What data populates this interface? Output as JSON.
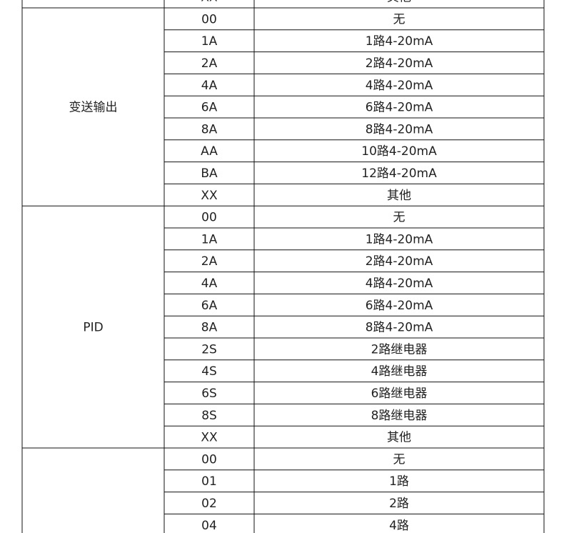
{
  "table": {
    "groups": [
      {
        "rows": [
          {
            "code": "XX",
            "desc": "其他"
          }
        ]
      },
      {
        "label": "变送输出",
        "rows": [
          {
            "code": "00",
            "desc": "无"
          },
          {
            "code": "1A",
            "desc": "1路4-20mA"
          },
          {
            "code": "2A",
            "desc": "2路4-20mA"
          },
          {
            "code": "4A",
            "desc": "4路4-20mA"
          },
          {
            "code": "6A",
            "desc": "6路4-20mA"
          },
          {
            "code": "8A",
            "desc": "8路4-20mA"
          },
          {
            "code": "AA",
            "desc": "10路4-20mA"
          },
          {
            "code": "BA",
            "desc": "12路4-20mA"
          },
          {
            "code": "XX",
            "desc": "其他"
          }
        ]
      },
      {
        "label": "PID",
        "rows": [
          {
            "code": "00",
            "desc": "无"
          },
          {
            "code": "1A",
            "desc": "1路4-20mA"
          },
          {
            "code": "2A",
            "desc": "2路4-20mA"
          },
          {
            "code": "4A",
            "desc": "4路4-20mA"
          },
          {
            "code": "6A",
            "desc": "6路4-20mA"
          },
          {
            "code": "8A",
            "desc": "8路4-20mA"
          },
          {
            "code": "2S",
            "desc": "2路继电器"
          },
          {
            "code": "4S",
            "desc": "4路继电器"
          },
          {
            "code": "6S",
            "desc": "6路继电器"
          },
          {
            "code": "8S",
            "desc": "8路继电器"
          },
          {
            "code": "XX",
            "desc": "其他"
          }
        ]
      },
      {
        "rows": [
          {
            "code": "00",
            "desc": "无"
          },
          {
            "code": "01",
            "desc": "1路"
          },
          {
            "code": "02",
            "desc": "2路"
          },
          {
            "code": "04",
            "desc": "4路"
          }
        ]
      }
    ]
  }
}
